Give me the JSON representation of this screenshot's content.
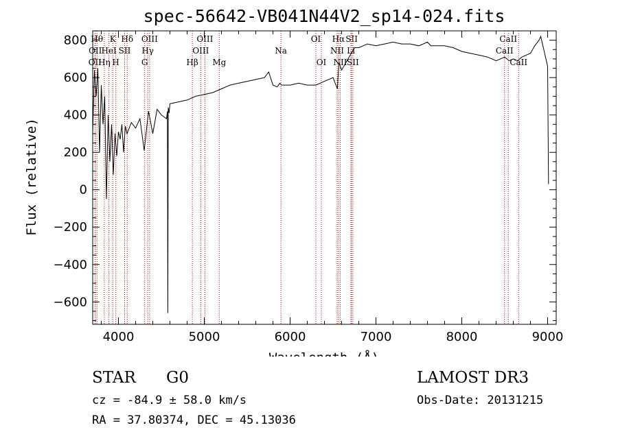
{
  "chart_data": {
    "type": "line",
    "title": "spec-56642-VB041N44V2_sp14-024.fits",
    "xlabel": "Wavelength (Å)",
    "ylabel": "Flux (relative)",
    "xlim": [
      3700,
      9100
    ],
    "ylim": [
      -720,
      850
    ],
    "xticks": [
      4000,
      5000,
      6000,
      7000,
      8000,
      9000
    ],
    "yticks": [
      -600,
      -400,
      -200,
      0,
      200,
      400,
      600,
      800
    ],
    "series": [
      {
        "name": "flux",
        "x": [
          3700,
          3720,
          3740,
          3760,
          3780,
          3800,
          3820,
          3840,
          3860,
          3880,
          3900,
          3920,
          3940,
          3960,
          3980,
          4000,
          4020,
          4040,
          4060,
          4080,
          4100,
          4150,
          4200,
          4250,
          4300,
          4350,
          4400,
          4450,
          4500,
          4560,
          4570,
          4575,
          4580,
          4590,
          4600,
          4700,
          4800,
          4900,
          5000,
          5100,
          5200,
          5300,
          5400,
          5500,
          5600,
          5700,
          5750,
          5800,
          5850,
          5880,
          5900,
          5950,
          6000,
          6100,
          6200,
          6300,
          6400,
          6500,
          6550,
          6560,
          6570,
          6600,
          6700,
          6750,
          6800,
          6850,
          6900,
          7000,
          7100,
          7200,
          7300,
          7400,
          7500,
          7600,
          7620,
          7640,
          7700,
          7800,
          7900,
          8000,
          8100,
          8200,
          8300,
          8400,
          8450,
          8500,
          8550,
          8600,
          8650,
          8700,
          8750,
          8800,
          8850,
          8900,
          8920,
          8950,
          9000,
          9010
        ],
        "values": [
          300,
          640,
          500,
          650,
          200,
          560,
          350,
          500,
          -50,
          400,
          150,
          350,
          80,
          300,
          180,
          310,
          270,
          350,
          200,
          340,
          300,
          360,
          330,
          380,
          210,
          420,
          300,
          430,
          400,
          380,
          420,
          -660,
          440,
          410,
          460,
          470,
          480,
          500,
          510,
          520,
          540,
          560,
          570,
          580,
          590,
          600,
          630,
          560,
          550,
          570,
          560,
          560,
          560,
          570,
          560,
          560,
          580,
          600,
          540,
          620,
          680,
          640,
          720,
          760,
          760,
          770,
          780,
          770,
          780,
          790,
          780,
          780,
          770,
          790,
          780,
          770,
          770,
          770,
          760,
          740,
          730,
          720,
          710,
          690,
          700,
          710,
          690,
          700,
          690,
          710,
          720,
          730,
          770,
          800,
          820,
          760,
          660,
          30
        ]
      }
    ],
    "spectral_lines": [
      {
        "label": "OII",
        "wavelength": 3727,
        "row": 3
      },
      {
        "label": "Hθ",
        "wavelength": 3750,
        "row": 1
      },
      {
        "label": "OII",
        "wavelength": 3730,
        "row": 2
      },
      {
        "label": "Hη",
        "wavelength": 3835,
        "row": 3
      },
      {
        "label": "HeI",
        "wavelength": 3889,
        "row": 2
      },
      {
        "label": "K",
        "wavelength": 3934,
        "row": 1
      },
      {
        "label": "H",
        "wavelength": 3969,
        "row": 3
      },
      {
        "label": "SII",
        "wavelength": 4072,
        "row": 2
      },
      {
        "label": "Hδ",
        "wavelength": 4102,
        "row": 1
      },
      {
        "label": "OIII",
        "wavelength": 4363,
        "row": 1
      },
      {
        "label": "Hγ",
        "wavelength": 4341,
        "row": 2
      },
      {
        "label": "G",
        "wavelength": 4305,
        "row": 3
      },
      {
        "label": "Hβ",
        "wavelength": 4861,
        "row": 3
      },
      {
        "label": "OIII",
        "wavelength": 5007,
        "row": 1
      },
      {
        "label": "OIII",
        "wavelength": 4959,
        "row": 2
      },
      {
        "label": "Mg",
        "wavelength": 5175,
        "row": 3
      },
      {
        "label": "Na",
        "wavelength": 5893,
        "row": 2
      },
      {
        "label": "OI",
        "wavelength": 6300,
        "row": 1
      },
      {
        "label": "OI",
        "wavelength": 6364,
        "row": 3
      },
      {
        "label": "Hα",
        "wavelength": 6563,
        "row": 1
      },
      {
        "label": "NII",
        "wavelength": 6548,
        "row": 2
      },
      {
        "label": "NII",
        "wavelength": 6584,
        "row": 3
      },
      {
        "label": "SII",
        "wavelength": 6717,
        "row": 1
      },
      {
        "label": "Li",
        "wavelength": 6708,
        "row": 2
      },
      {
        "label": "SII",
        "wavelength": 6731,
        "row": 3
      },
      {
        "label": "CaII",
        "wavelength": 8542,
        "row": 1
      },
      {
        "label": "CaII",
        "wavelength": 8498,
        "row": 2
      },
      {
        "label": "CaII",
        "wavelength": 8662,
        "row": 3
      }
    ]
  },
  "info": {
    "class": "STAR",
    "subclass": "G0",
    "survey": "LAMOST DR3",
    "cz": "cz = -84.9 ± 58.0 km/s",
    "obs_date": "Obs-Date: 20131215",
    "coords": "RA =  37.80374, DEC =  45.13036"
  }
}
